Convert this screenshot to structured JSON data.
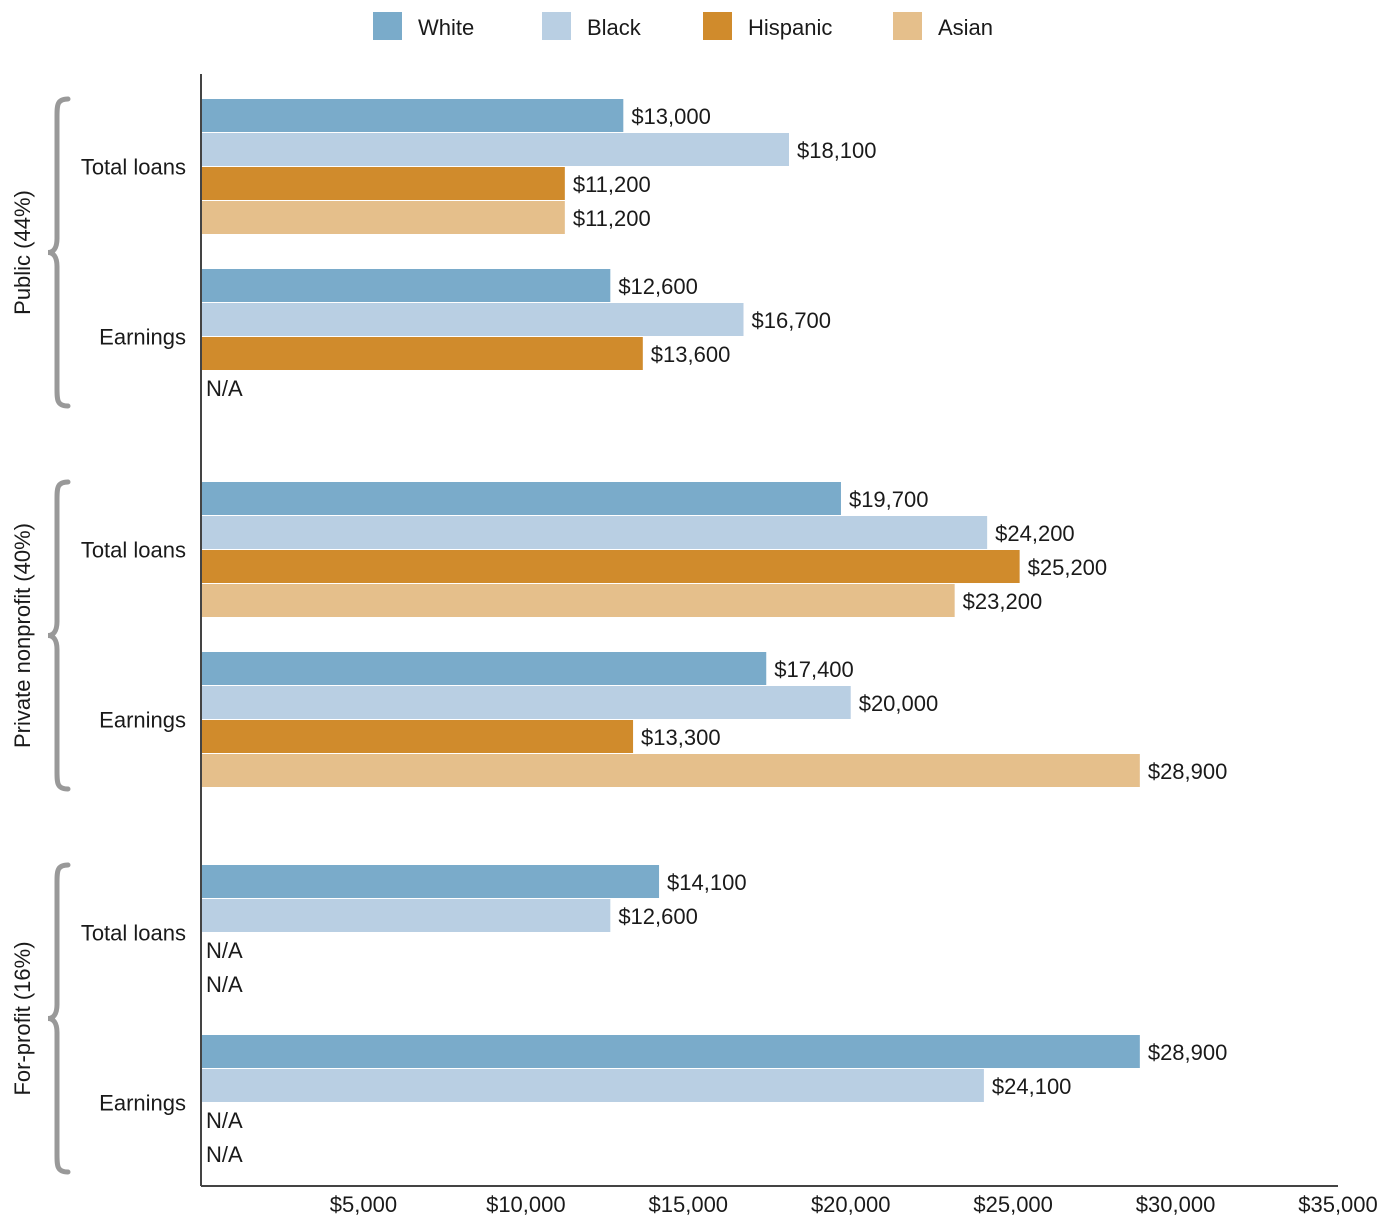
{
  "chart_data": {
    "type": "bar",
    "orientation": "horizontal",
    "xlim": [
      0,
      35000
    ],
    "ticks": [
      "$5,000",
      "$10,000",
      "$15,000",
      "$20,000",
      "$25,000",
      "$30,000",
      "$35,000"
    ],
    "tick_values": [
      5000,
      10000,
      15000,
      20000,
      25000,
      30000,
      35000
    ],
    "legend": {
      "placement": "top-center"
    },
    "series": [
      {
        "name": "White",
        "color": "#7aabca"
      },
      {
        "name": "Black",
        "color": "#b9cfe3"
      },
      {
        "name": "Hispanic",
        "color": "#d08b2c"
      },
      {
        "name": "Asian",
        "color": "#e5bf8b"
      }
    ],
    "groups": [
      {
        "label": "Public (44%)",
        "subgroups": [
          {
            "label": "Total loans",
            "values": [
              13000,
              18100,
              11200,
              11200
            ],
            "value_labels": [
              "$13,000",
              "$18,100",
              "$11,200",
              "$11,200"
            ]
          },
          {
            "label": "Earnings",
            "values": [
              12600,
              16700,
              13600,
              null
            ],
            "value_labels": [
              "$12,600",
              "$16,700",
              "$13,600",
              "N/A"
            ]
          }
        ]
      },
      {
        "label": "Private nonprofit (40%)",
        "subgroups": [
          {
            "label": "Total loans",
            "values": [
              19700,
              24200,
              25200,
              23200
            ],
            "value_labels": [
              "$19,700",
              "$24,200",
              "$25,200",
              "$23,200"
            ]
          },
          {
            "label": "Earnings",
            "values": [
              17400,
              20000,
              13300,
              28900
            ],
            "value_labels": [
              "$17,400",
              "$20,000",
              "$13,300",
              "$28,900"
            ]
          }
        ]
      },
      {
        "label": "For-profit (16%)",
        "subgroups": [
          {
            "label": "Total loans",
            "values": [
              14100,
              12600,
              null,
              null
            ],
            "value_labels": [
              "$14,100",
              "$12,600",
              "N/A",
              "N/A"
            ]
          },
          {
            "label": "Earnings",
            "values": [
              28900,
              24100,
              null,
              null
            ],
            "value_labels": [
              "$28,900",
              "$24,100",
              "N/A",
              "N/A"
            ]
          }
        ]
      }
    ]
  }
}
